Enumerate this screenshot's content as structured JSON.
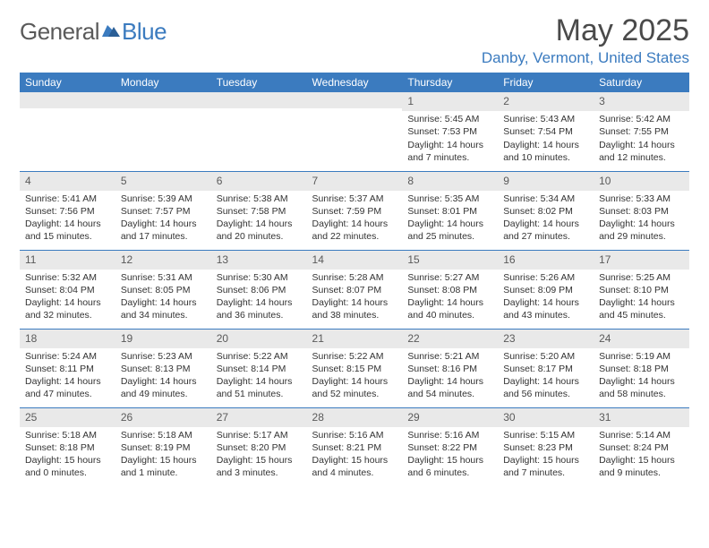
{
  "logo": {
    "part1": "General",
    "part2": "Blue"
  },
  "title": "May 2025",
  "location": "Danby, Vermont, United States",
  "colors": {
    "accent": "#3b7bbf",
    "header_text": "#ffffff",
    "daynum_bg": "#e9e9e9",
    "text": "#333333",
    "logo_gray": "#5a5a5a"
  },
  "week_headers": [
    "Sunday",
    "Monday",
    "Tuesday",
    "Wednesday",
    "Thursday",
    "Friday",
    "Saturday"
  ],
  "weeks": [
    [
      {
        "n": "",
        "sr": "",
        "ss": "",
        "dl": ""
      },
      {
        "n": "",
        "sr": "",
        "ss": "",
        "dl": ""
      },
      {
        "n": "",
        "sr": "",
        "ss": "",
        "dl": ""
      },
      {
        "n": "",
        "sr": "",
        "ss": "",
        "dl": ""
      },
      {
        "n": "1",
        "sr": "Sunrise: 5:45 AM",
        "ss": "Sunset: 7:53 PM",
        "dl": "Daylight: 14 hours and 7 minutes."
      },
      {
        "n": "2",
        "sr": "Sunrise: 5:43 AM",
        "ss": "Sunset: 7:54 PM",
        "dl": "Daylight: 14 hours and 10 minutes."
      },
      {
        "n": "3",
        "sr": "Sunrise: 5:42 AM",
        "ss": "Sunset: 7:55 PM",
        "dl": "Daylight: 14 hours and 12 minutes."
      }
    ],
    [
      {
        "n": "4",
        "sr": "Sunrise: 5:41 AM",
        "ss": "Sunset: 7:56 PM",
        "dl": "Daylight: 14 hours and 15 minutes."
      },
      {
        "n": "5",
        "sr": "Sunrise: 5:39 AM",
        "ss": "Sunset: 7:57 PM",
        "dl": "Daylight: 14 hours and 17 minutes."
      },
      {
        "n": "6",
        "sr": "Sunrise: 5:38 AM",
        "ss": "Sunset: 7:58 PM",
        "dl": "Daylight: 14 hours and 20 minutes."
      },
      {
        "n": "7",
        "sr": "Sunrise: 5:37 AM",
        "ss": "Sunset: 7:59 PM",
        "dl": "Daylight: 14 hours and 22 minutes."
      },
      {
        "n": "8",
        "sr": "Sunrise: 5:35 AM",
        "ss": "Sunset: 8:01 PM",
        "dl": "Daylight: 14 hours and 25 minutes."
      },
      {
        "n": "9",
        "sr": "Sunrise: 5:34 AM",
        "ss": "Sunset: 8:02 PM",
        "dl": "Daylight: 14 hours and 27 minutes."
      },
      {
        "n": "10",
        "sr": "Sunrise: 5:33 AM",
        "ss": "Sunset: 8:03 PM",
        "dl": "Daylight: 14 hours and 29 minutes."
      }
    ],
    [
      {
        "n": "11",
        "sr": "Sunrise: 5:32 AM",
        "ss": "Sunset: 8:04 PM",
        "dl": "Daylight: 14 hours and 32 minutes."
      },
      {
        "n": "12",
        "sr": "Sunrise: 5:31 AM",
        "ss": "Sunset: 8:05 PM",
        "dl": "Daylight: 14 hours and 34 minutes."
      },
      {
        "n": "13",
        "sr": "Sunrise: 5:30 AM",
        "ss": "Sunset: 8:06 PM",
        "dl": "Daylight: 14 hours and 36 minutes."
      },
      {
        "n": "14",
        "sr": "Sunrise: 5:28 AM",
        "ss": "Sunset: 8:07 PM",
        "dl": "Daylight: 14 hours and 38 minutes."
      },
      {
        "n": "15",
        "sr": "Sunrise: 5:27 AM",
        "ss": "Sunset: 8:08 PM",
        "dl": "Daylight: 14 hours and 40 minutes."
      },
      {
        "n": "16",
        "sr": "Sunrise: 5:26 AM",
        "ss": "Sunset: 8:09 PM",
        "dl": "Daylight: 14 hours and 43 minutes."
      },
      {
        "n": "17",
        "sr": "Sunrise: 5:25 AM",
        "ss": "Sunset: 8:10 PM",
        "dl": "Daylight: 14 hours and 45 minutes."
      }
    ],
    [
      {
        "n": "18",
        "sr": "Sunrise: 5:24 AM",
        "ss": "Sunset: 8:11 PM",
        "dl": "Daylight: 14 hours and 47 minutes."
      },
      {
        "n": "19",
        "sr": "Sunrise: 5:23 AM",
        "ss": "Sunset: 8:13 PM",
        "dl": "Daylight: 14 hours and 49 minutes."
      },
      {
        "n": "20",
        "sr": "Sunrise: 5:22 AM",
        "ss": "Sunset: 8:14 PM",
        "dl": "Daylight: 14 hours and 51 minutes."
      },
      {
        "n": "21",
        "sr": "Sunrise: 5:22 AM",
        "ss": "Sunset: 8:15 PM",
        "dl": "Daylight: 14 hours and 52 minutes."
      },
      {
        "n": "22",
        "sr": "Sunrise: 5:21 AM",
        "ss": "Sunset: 8:16 PM",
        "dl": "Daylight: 14 hours and 54 minutes."
      },
      {
        "n": "23",
        "sr": "Sunrise: 5:20 AM",
        "ss": "Sunset: 8:17 PM",
        "dl": "Daylight: 14 hours and 56 minutes."
      },
      {
        "n": "24",
        "sr": "Sunrise: 5:19 AM",
        "ss": "Sunset: 8:18 PM",
        "dl": "Daylight: 14 hours and 58 minutes."
      }
    ],
    [
      {
        "n": "25",
        "sr": "Sunrise: 5:18 AM",
        "ss": "Sunset: 8:18 PM",
        "dl": "Daylight: 15 hours and 0 minutes."
      },
      {
        "n": "26",
        "sr": "Sunrise: 5:18 AM",
        "ss": "Sunset: 8:19 PM",
        "dl": "Daylight: 15 hours and 1 minute."
      },
      {
        "n": "27",
        "sr": "Sunrise: 5:17 AM",
        "ss": "Sunset: 8:20 PM",
        "dl": "Daylight: 15 hours and 3 minutes."
      },
      {
        "n": "28",
        "sr": "Sunrise: 5:16 AM",
        "ss": "Sunset: 8:21 PM",
        "dl": "Daylight: 15 hours and 4 minutes."
      },
      {
        "n": "29",
        "sr": "Sunrise: 5:16 AM",
        "ss": "Sunset: 8:22 PM",
        "dl": "Daylight: 15 hours and 6 minutes."
      },
      {
        "n": "30",
        "sr": "Sunrise: 5:15 AM",
        "ss": "Sunset: 8:23 PM",
        "dl": "Daylight: 15 hours and 7 minutes."
      },
      {
        "n": "31",
        "sr": "Sunrise: 5:14 AM",
        "ss": "Sunset: 8:24 PM",
        "dl": "Daylight: 15 hours and 9 minutes."
      }
    ]
  ]
}
